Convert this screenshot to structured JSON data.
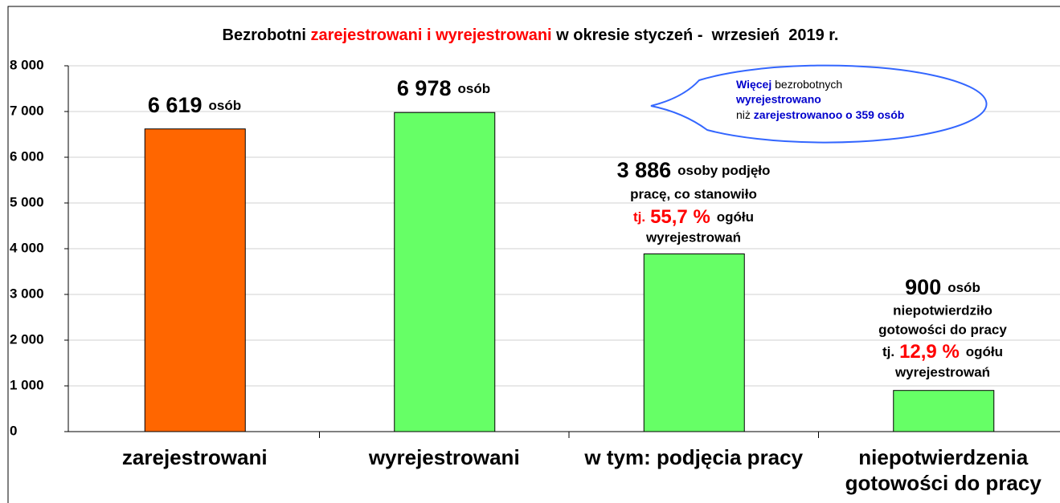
{
  "chart_data": {
    "type": "bar",
    "title_parts": [
      "Bezrobotni ",
      "zarejestrowani i wyrejestrowani",
      " w okresie styczeń -  wrzesień  2019 r."
    ],
    "categories": [
      "zarejestrowani",
      "wyrejestrowani",
      "w tym: podjęcia pracy",
      "niepotwierdzenia gotowości do pracy"
    ],
    "values": [
      6619,
      6978,
      3886,
      900
    ],
    "value_labels": [
      "6 619",
      "6 978",
      "3 886",
      "900"
    ],
    "colors": [
      "#ff6600",
      "#66ff66",
      "#66ff66",
      "#66ff66"
    ],
    "annotations": [
      [
        "osób"
      ],
      [
        "osób"
      ],
      [
        "osoby podjęło",
        "pracę, co stanowiło",
        "tj.",
        "55,7 %",
        "ogółu",
        "wyrejestrowań"
      ],
      [
        "osób",
        "niepotwierdziło",
        "gotowości do pracy",
        "tj.",
        "12,9 %",
        "ogółu",
        "wyrejestrowań"
      ]
    ],
    "callout": [
      "Więcej",
      " bezrobotnych",
      "wyrejestrowano",
      "niż ",
      "zarejestrowanoo o 359 osób"
    ],
    "ylim": [
      0,
      8000
    ],
    "yticks": [
      0,
      {
        "value": 1000,
        "label": "1 000"
      },
      {
        "value": 2000,
        "label": "2 000"
      },
      {
        "value": 3000,
        "label": "3 000"
      },
      {
        "value": 4000,
        "label": "4 000"
      },
      {
        "value": 5000,
        "label": "5 000"
      },
      {
        "value": 6000,
        "label": "6 000"
      },
      {
        "value": 7000,
        "label": "7 000"
      },
      {
        "value": 8000,
        "label": "8 000"
      }
    ],
    "grid": true
  }
}
